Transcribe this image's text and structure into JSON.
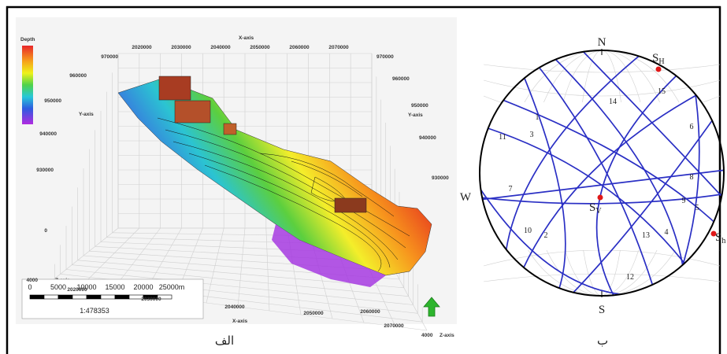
{
  "panel_a": {
    "legend_title": "Depth",
    "x_axis": "X-axis",
    "y_axis": "Y-axis",
    "z_axis": "Z-axis",
    "top_x_ticks": [
      "2020000",
      "2030000",
      "2040000",
      "2050000",
      "2060000",
      "2070000"
    ],
    "bottom_x_ticks": [
      "2020000",
      "2030000",
      "2040000",
      "2050000",
      "2060000",
      "2070000"
    ],
    "left_y_ticks": [
      "970000",
      "960000",
      "950000",
      "940000",
      "930000"
    ],
    "right_y_ticks": [
      "970000",
      "960000",
      "950000",
      "940000",
      "930000"
    ],
    "z_ticks": [
      "0",
      "4000"
    ],
    "right_z_tick": "4000",
    "scale_labels": [
      "0",
      "5000",
      "10000",
      "15000",
      "20000",
      "25000m"
    ],
    "scale_ratio": "1:478353",
    "caption": "الف"
  },
  "panel_b": {
    "north": "N",
    "south": "S",
    "west": "W",
    "sh_max": {
      "base": "S",
      "sub": "H"
    },
    "sv": {
      "base": "S",
      "sub": "V"
    },
    "sh_min": {
      "base": "S",
      "sub": "h"
    },
    "plane_labels": [
      "1",
      "2",
      "3",
      "4",
      "5",
      "6",
      "7",
      "8",
      "9",
      "10",
      "11",
      "12",
      "13",
      "14",
      "15"
    ],
    "caption": "ب"
  }
}
